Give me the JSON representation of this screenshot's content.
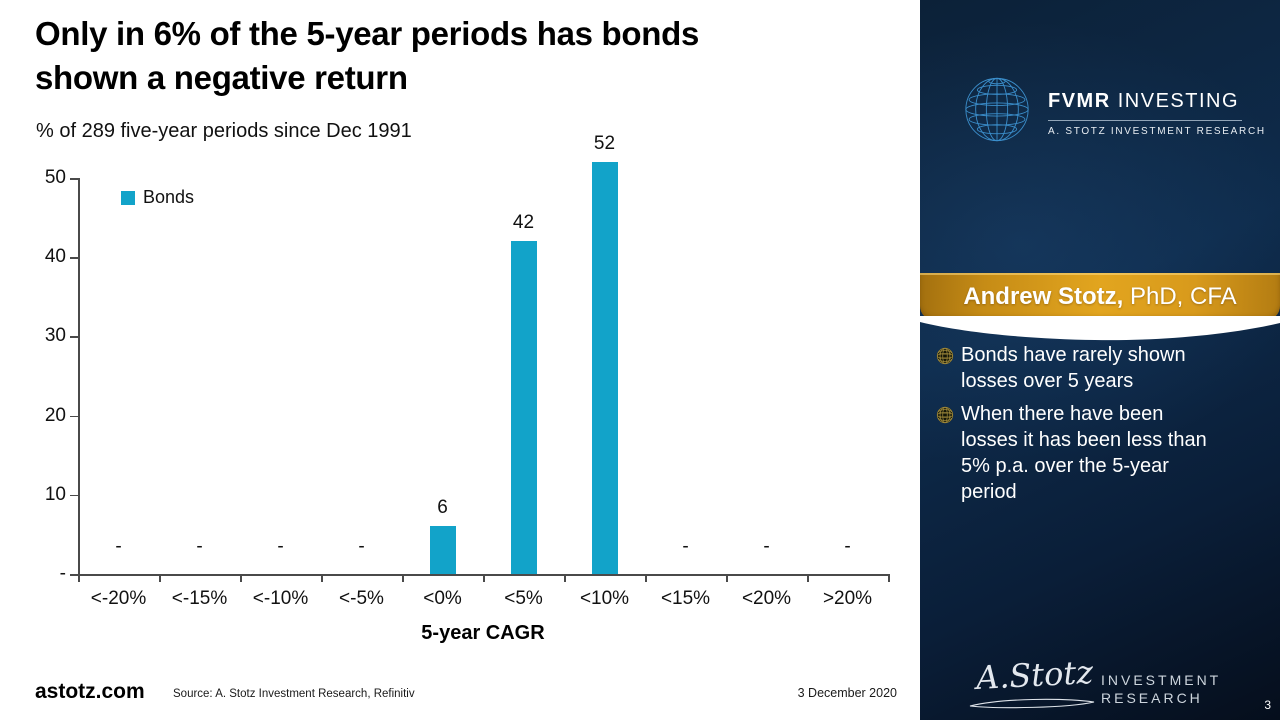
{
  "slide": {
    "title": "Only in 6% of the 5-year periods has bonds\nshown a negative return",
    "subtitle": "% of 289 five-year periods since Dec 1991"
  },
  "chart_data": {
    "type": "bar",
    "title": "% of 289 five-year periods since Dec 1991",
    "categories": [
      "<-20%",
      "<-15%",
      "<-10%",
      "<-5%",
      "<0%",
      "<5%",
      "<10%",
      "<15%",
      "<20%",
      ">20%"
    ],
    "series": [
      {
        "name": "Bonds",
        "values": [
          0,
          0,
          0,
          0,
          6,
          42,
          52,
          0,
          0,
          0
        ]
      }
    ],
    "value_labels": [
      "-",
      "-",
      "-",
      "-",
      "6",
      "42",
      "52",
      "-",
      "-",
      "-"
    ],
    "xlabel": "5-year CAGR",
    "ylabel": "",
    "ylim": [
      0,
      50
    ],
    "ytick_labels": [
      "50",
      "40",
      "30",
      "20",
      "10",
      "-"
    ],
    "bar_color": "#12A3C9",
    "legend_position": "top-left",
    "grid": false
  },
  "footer": {
    "site": "astotz.com",
    "source": "Source: A. Stotz Investment Research, Refinitiv",
    "date": "3 December 2020"
  },
  "sidebar": {
    "brand": {
      "name_bold": "FVMR",
      "name_light": " INVESTING",
      "sub": "A. STOTZ INVESTMENT RESEARCH"
    },
    "banner": {
      "bold": "Andrew Stotz,",
      "light": " PhD, CFA"
    },
    "bullets": [
      "Bonds have rarely shown\nlosses over 5 years",
      "When there have been\nlosses it has been less than\n5% p.a. over the 5-year\nperiod"
    ],
    "signature": {
      "script": "A.Stotz",
      "line1": "INVESTMENT",
      "line2": "RESEARCH"
    },
    "page_number": "3"
  },
  "colors": {
    "bar_cyan": "#12A3C9",
    "banner_gold": "#D0941C",
    "sidebar_navy": "#0E2B4B",
    "axis_gray": "#4A4A4A",
    "text_black": "#000000",
    "sidebar_text_white": "#FFFFFF"
  }
}
